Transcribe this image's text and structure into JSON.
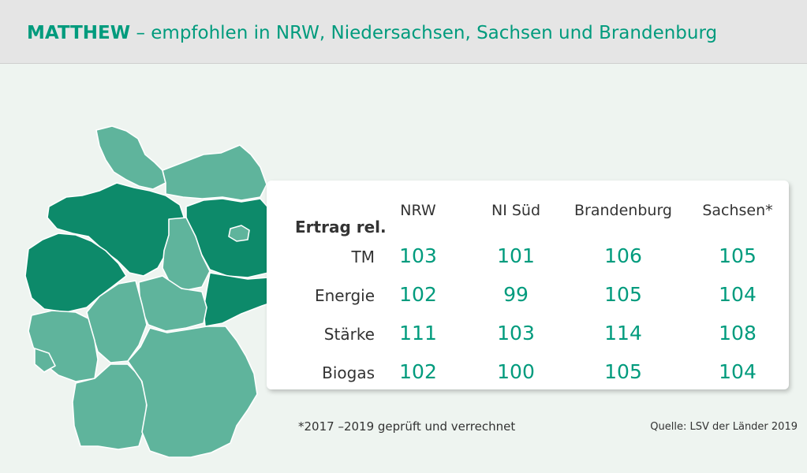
{
  "header": {
    "title_bold": "MATTHEW",
    "title_rest": " – empfohlen in NRW, Niedersachsen, Sachsen und Brandenburg"
  },
  "colors": {
    "accent": "#009b7d",
    "region_dark": "#0d8a6a",
    "region_light": "#5fb49c",
    "header_bg": "#e5e5e5"
  },
  "chart_data": {
    "type": "table",
    "row_header": "Ertrag rel.",
    "columns": [
      "NRW",
      "NI Süd",
      "Brandenburg",
      "Sachsen*"
    ],
    "rows": [
      {
        "label": "TM",
        "values": [
          103,
          101,
          106,
          105
        ]
      },
      {
        "label": "Energie",
        "values": [
          102,
          99,
          105,
          104
        ]
      },
      {
        "label": "Stärke",
        "values": [
          111,
          103,
          114,
          108
        ]
      },
      {
        "label": "Biogas",
        "values": [
          102,
          100,
          105,
          104
        ]
      }
    ]
  },
  "footnote": "*2017 –2019 geprüft und verrechnet",
  "source": "Quelle: LSV der Länder 2019"
}
